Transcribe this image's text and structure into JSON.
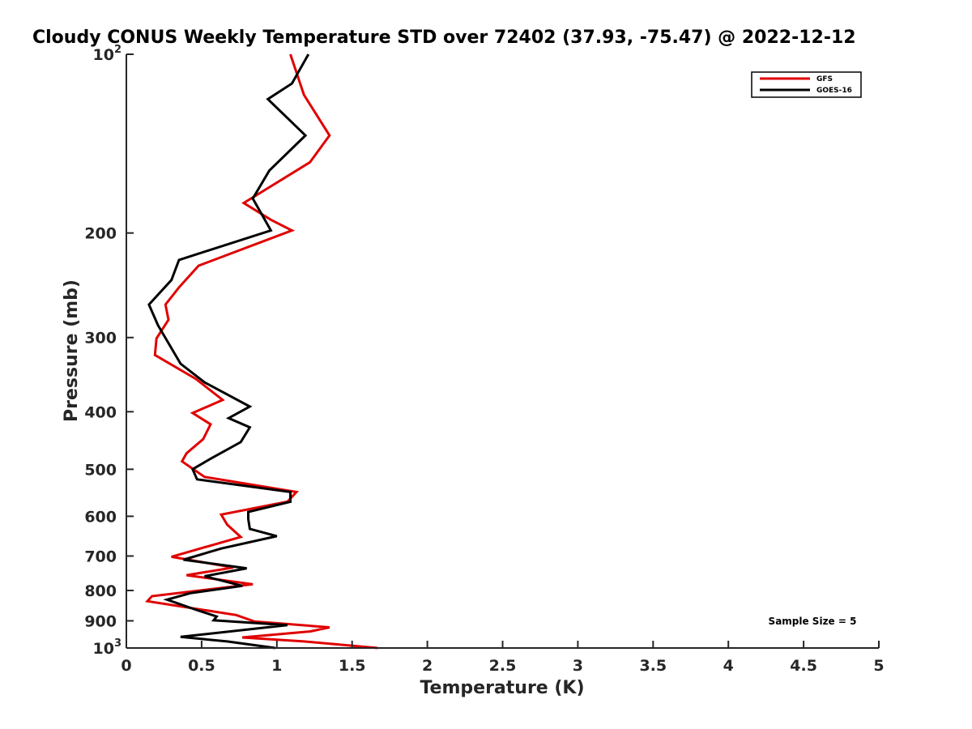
{
  "chart_data": {
    "type": "line",
    "title": "Cloudy CONUS Weekly Temperature STD over 72402 (37.93, -75.47) @ 2022-12-12",
    "xlabel": "Temperature (K)",
    "ylabel": "Pressure (mb)",
    "xlim": [
      0,
      5
    ],
    "ylim": [
      1000,
      100
    ],
    "y_scale": "log",
    "y_reversed": true,
    "grid": false,
    "legend_position": "top-right",
    "x_ticks": [
      "0",
      "0.5",
      "1",
      "1.5",
      "2",
      "2.5",
      "3",
      "3.5",
      "4",
      "4.5",
      "5"
    ],
    "y_ticks": [
      {
        "value": 100,
        "base": "10",
        "exp": "2"
      },
      {
        "value": 200,
        "label": "200"
      },
      {
        "value": 300,
        "label": "300"
      },
      {
        "value": 400,
        "label": "400"
      },
      {
        "value": 500,
        "label": "500"
      },
      {
        "value": 600,
        "label": "600"
      },
      {
        "value": 700,
        "label": "700"
      },
      {
        "value": 800,
        "label": "800"
      },
      {
        "value": 900,
        "label": "900"
      },
      {
        "value": 1000,
        "base": "10",
        "exp": "3"
      }
    ],
    "annotation": "Sample Size = 5",
    "series": [
      {
        "name": "GFS",
        "color": "#e00000",
        "points": [
          [
            1.09,
            100
          ],
          [
            1.18,
            117
          ],
          [
            1.35,
            137
          ],
          [
            1.22,
            152
          ],
          [
            0.78,
            178
          ],
          [
            0.96,
            190
          ],
          [
            1.1,
            198
          ],
          [
            0.48,
            227
          ],
          [
            0.35,
            247
          ],
          [
            0.26,
            264
          ],
          [
            0.28,
            280
          ],
          [
            0.2,
            301
          ],
          [
            0.19,
            321
          ],
          [
            0.46,
            352
          ],
          [
            0.64,
            382
          ],
          [
            0.44,
            402
          ],
          [
            0.56,
            420
          ],
          [
            0.51,
            445
          ],
          [
            0.4,
            470
          ],
          [
            0.37,
            485
          ],
          [
            0.52,
            515
          ],
          [
            1.13,
            546
          ],
          [
            1.07,
            567
          ],
          [
            0.63,
            596
          ],
          [
            0.67,
            620
          ],
          [
            0.76,
            650
          ],
          [
            0.3,
            702
          ],
          [
            0.71,
            732
          ],
          [
            0.4,
            754
          ],
          [
            0.84,
            781
          ],
          [
            0.17,
            818
          ],
          [
            0.14,
            834
          ],
          [
            0.73,
            880
          ],
          [
            0.85,
            902
          ],
          [
            1.35,
            923
          ],
          [
            1.22,
            938
          ],
          [
            0.77,
            960
          ],
          [
            1.18,
            975
          ],
          [
            1.67,
            1000
          ]
        ]
      },
      {
        "name": "GOES-16",
        "color": "#000000",
        "points": [
          [
            1.21,
            100
          ],
          [
            1.1,
            112
          ],
          [
            0.94,
            119
          ],
          [
            1.19,
            137
          ],
          [
            0.95,
            157
          ],
          [
            0.84,
            175
          ],
          [
            0.96,
            198
          ],
          [
            0.35,
            222
          ],
          [
            0.3,
            240
          ],
          [
            0.15,
            264
          ],
          [
            0.21,
            286
          ],
          [
            0.36,
            332
          ],
          [
            0.52,
            357
          ],
          [
            0.82,
            392
          ],
          [
            0.68,
            410
          ],
          [
            0.82,
            425
          ],
          [
            0.76,
            450
          ],
          [
            0.56,
            480
          ],
          [
            0.44,
            500
          ],
          [
            0.47,
            520
          ],
          [
            1.09,
            546
          ],
          [
            1.09,
            567
          ],
          [
            0.81,
            590
          ],
          [
            0.81,
            606
          ],
          [
            0.82,
            630
          ],
          [
            1.0,
            648
          ],
          [
            0.63,
            680
          ],
          [
            0.38,
            710
          ],
          [
            0.8,
            734
          ],
          [
            0.52,
            757
          ],
          [
            0.77,
            786
          ],
          [
            0.43,
            808
          ],
          [
            0.27,
            829
          ],
          [
            0.45,
            860
          ],
          [
            0.6,
            885
          ],
          [
            0.58,
            898
          ],
          [
            1.07,
            915
          ],
          [
            0.36,
            958
          ],
          [
            0.67,
            975
          ],
          [
            0.99,
            1000
          ]
        ]
      }
    ]
  }
}
